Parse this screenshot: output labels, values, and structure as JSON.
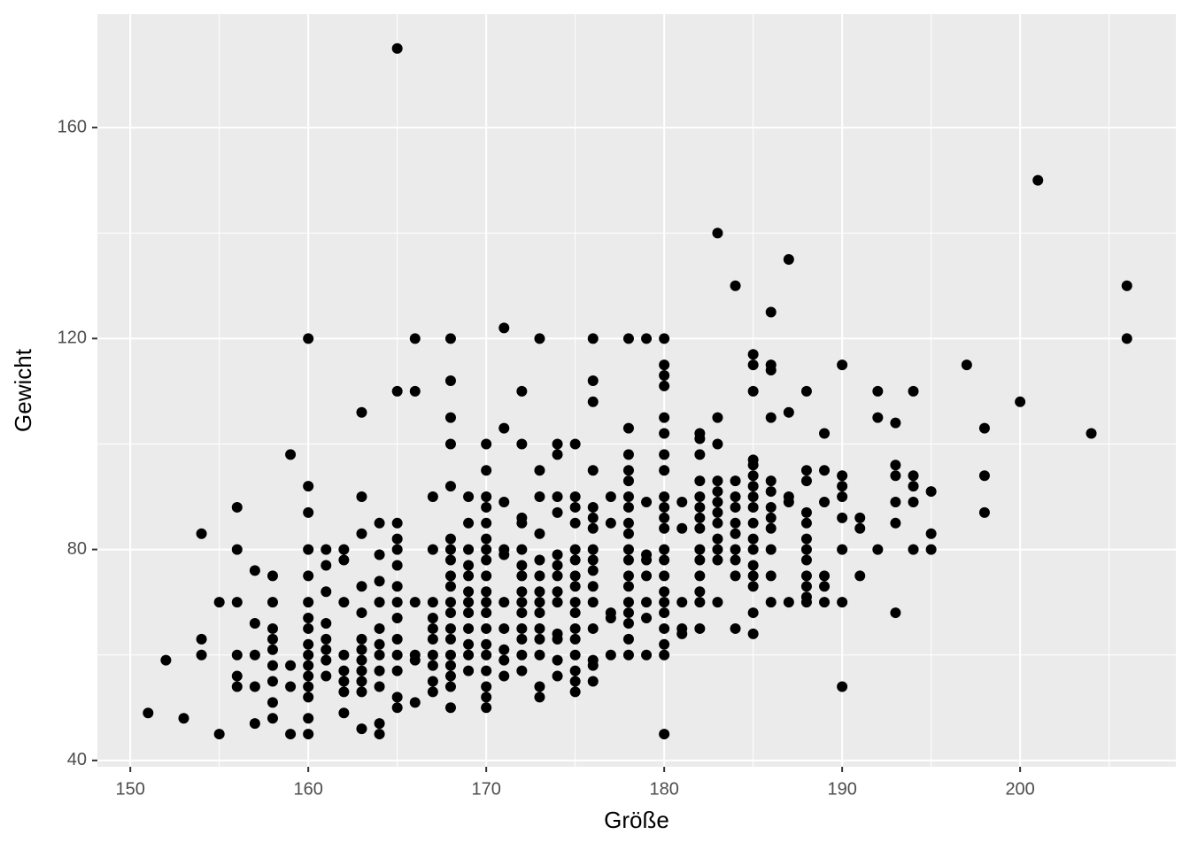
{
  "chart_data": {
    "type": "scatter",
    "x_label": "Größe",
    "y_label": "Gewicht",
    "xlim": [
      148.15,
      208.75
    ],
    "ylim": [
      38.8,
      181.5
    ],
    "xticks": [
      150,
      160,
      170,
      180,
      190,
      200
    ],
    "yticks": [
      40,
      80,
      120,
      160
    ],
    "x_minor_grid": [
      155,
      165,
      175,
      185,
      195,
      205
    ],
    "y_minor_grid": [
      60,
      100,
      140
    ],
    "grid": true,
    "color": "#000000",
    "panel_color": "#ebebeb",
    "x": [
      151,
      152,
      153,
      154,
      154,
      154,
      155,
      155,
      156,
      156,
      156,
      156,
      156,
      156,
      157,
      157,
      157,
      157,
      157,
      158,
      158,
      158,
      158,
      158,
      158,
      158,
      158,
      158,
      159,
      159,
      159,
      159,
      160,
      160,
      160,
      160,
      160,
      160,
      160,
      160,
      160,
      160,
      160,
      160,
      160,
      160,
      160,
      160,
      161,
      161,
      161,
      161,
      161,
      161,
      161,
      161,
      162,
      162,
      162,
      162,
      162,
      162,
      162,
      162,
      163,
      163,
      163,
      163,
      163,
      163,
      163,
      163,
      163,
      163,
      163,
      163,
      164,
      164,
      164,
      164,
      164,
      164,
      164,
      164,
      164,
      164,
      164,
      165,
      165,
      165,
      165,
      165,
      165,
      165,
      165,
      165,
      165,
      165,
      165,
      165,
      165,
      166,
      166,
      166,
      166,
      166,
      166,
      167,
      167,
      167,
      167,
      167,
      167,
      167,
      167,
      167,
      167,
      168,
      168,
      168,
      168,
      168,
      168,
      168,
      168,
      168,
      168,
      168,
      168,
      168,
      168,
      168,
      168,
      168,
      168,
      168,
      169,
      169,
      169,
      169,
      169,
      169,
      169,
      169,
      169,
      169,
      169,
      169,
      170,
      170,
      170,
      170,
      170,
      170,
      170,
      170,
      170,
      170,
      170,
      170,
      170,
      170,
      170,
      170,
      170,
      170,
      170,
      171,
      171,
      171,
      171,
      171,
      171,
      171,
      171,
      171,
      171,
      172,
      172,
      172,
      172,
      172,
      172,
      172,
      172,
      172,
      172,
      172,
      172,
      172,
      172,
      173,
      173,
      173,
      173,
      173,
      173,
      173,
      173,
      173,
      173,
      173,
      173,
      173,
      173,
      174,
      174,
      174,
      174,
      174,
      174,
      174,
      174,
      174,
      174,
      174,
      174,
      174,
      175,
      175,
      175,
      175,
      175,
      175,
      175,
      175,
      175,
      175,
      175,
      175,
      175,
      175,
      175,
      175,
      176,
      176,
      176,
      176,
      176,
      176,
      176,
      176,
      176,
      176,
      176,
      176,
      176,
      176,
      176,
      176,
      177,
      177,
      177,
      177,
      177,
      178,
      178,
      178,
      178,
      178,
      178,
      178,
      178,
      178,
      178,
      178,
      178,
      178,
      178,
      178,
      178,
      178,
      178,
      179,
      179,
      179,
      179,
      179,
      179,
      179,
      179,
      180,
      180,
      180,
      180,
      180,
      180,
      180,
      180,
      180,
      180,
      180,
      180,
      180,
      180,
      180,
      180,
      180,
      180,
      180,
      180,
      180,
      180,
      181,
      181,
      181,
      181,
      181,
      182,
      182,
      182,
      182,
      182,
      182,
      182,
      182,
      182,
      182,
      182,
      182,
      182,
      182,
      183,
      183,
      183,
      183,
      183,
      183,
      183,
      183,
      183,
      183,
      183,
      183,
      184,
      184,
      184,
      184,
      184,
      184,
      184,
      184,
      184,
      184,
      185,
      185,
      185,
      185,
      185,
      185,
      185,
      185,
      185,
      185,
      185,
      185,
      185,
      185,
      185,
      185,
      185,
      186,
      186,
      186,
      186,
      186,
      186,
      186,
      186,
      186,
      186,
      186,
      186,
      187,
      187,
      187,
      187,
      187,
      188,
      188,
      188,
      188,
      188,
      188,
      188,
      188,
      188,
      188,
      188,
      188,
      189,
      189,
      189,
      189,
      189,
      189,
      190,
      190,
      190,
      190,
      190,
      190,
      190,
      190,
      191,
      191,
      191,
      192,
      192,
      192,
      193,
      193,
      193,
      193,
      193,
      193,
      194,
      194,
      194,
      194,
      194,
      195,
      195,
      195,
      197,
      198,
      198,
      198,
      200,
      201,
      204,
      206,
      206
    ],
    "values": [
      49,
      59,
      48,
      83,
      63,
      60,
      70,
      45,
      88,
      80,
      70,
      60,
      56,
      54,
      76,
      66,
      60,
      54,
      47,
      75,
      70,
      65,
      63,
      61,
      58,
      55,
      51,
      48,
      98,
      58,
      54,
      45,
      120,
      92,
      87,
      80,
      75,
      70,
      67,
      65,
      62,
      60,
      58,
      56,
      54,
      52,
      48,
      45,
      80,
      77,
      72,
      66,
      63,
      61,
      59,
      56,
      80,
      78,
      70,
      60,
      57,
      55,
      53,
      49,
      106,
      90,
      83,
      73,
      68,
      63,
      61,
      59,
      57,
      55,
      53,
      46,
      85,
      79,
      74,
      70,
      65,
      62,
      60,
      57,
      54,
      47,
      45,
      175,
      110,
      85,
      82,
      80,
      77,
      73,
      70,
      67,
      63,
      60,
      57,
      52,
      50,
      120,
      110,
      70,
      60,
      59,
      51,
      90,
      80,
      70,
      67,
      65,
      63,
      60,
      58,
      55,
      53,
      120,
      112,
      105,
      100,
      92,
      82,
      80,
      78,
      75,
      73,
      70,
      68,
      65,
      63,
      60,
      58,
      56,
      54,
      50,
      90,
      85,
      80,
      77,
      75,
      72,
      70,
      68,
      65,
      62,
      60,
      57,
      100,
      95,
      90,
      88,
      85,
      82,
      80,
      78,
      75,
      72,
      70,
      68,
      65,
      62,
      60,
      57,
      54,
      52,
      50,
      122,
      103,
      89,
      80,
      79,
      70,
      65,
      61,
      59,
      56,
      110,
      100,
      86,
      85,
      80,
      77,
      75,
      72,
      70,
      68,
      65,
      63,
      60,
      57,
      120,
      95,
      90,
      83,
      78,
      75,
      72,
      70,
      68,
      65,
      63,
      60,
      54,
      52,
      100,
      98,
      90,
      87,
      79,
      77,
      75,
      72,
      70,
      64,
      63,
      59,
      56,
      100,
      90,
      88,
      85,
      80,
      78,
      75,
      73,
      70,
      68,
      65,
      63,
      60,
      57,
      55,
      53,
      120,
      112,
      108,
      95,
      88,
      86,
      84,
      80,
      78,
      76,
      73,
      70,
      65,
      59,
      58,
      55,
      90,
      85,
      68,
      67,
      60,
      120,
      103,
      98,
      95,
      93,
      90,
      88,
      85,
      83,
      80,
      78,
      75,
      73,
      70,
      68,
      66,
      63,
      60,
      120,
      89,
      79,
      78,
      75,
      70,
      67,
      60,
      120,
      115,
      113,
      111,
      105,
      102,
      98,
      95,
      90,
      88,
      86,
      84,
      80,
      78,
      75,
      72,
      70,
      68,
      65,
      62,
      60,
      45,
      89,
      84,
      70,
      65,
      64,
      102,
      101,
      98,
      93,
      90,
      88,
      86,
      84,
      80,
      78,
      75,
      72,
      70,
      65,
      140,
      105,
      100,
      93,
      91,
      89,
      87,
      85,
      82,
      80,
      78,
      70,
      130,
      93,
      90,
      88,
      85,
      83,
      80,
      78,
      75,
      65,
      117,
      115,
      110,
      97,
      96,
      94,
      92,
      90,
      88,
      85,
      82,
      80,
      77,
      75,
      73,
      68,
      64,
      125,
      115,
      114,
      105,
      93,
      91,
      88,
      86,
      84,
      80,
      75,
      70,
      135,
      106,
      90,
      89,
      70,
      110,
      95,
      93,
      87,
      85,
      82,
      80,
      78,
      75,
      73,
      71,
      70,
      102,
      95,
      89,
      75,
      73,
      70,
      115,
      94,
      92,
      90,
      86,
      80,
      70,
      54,
      86,
      84,
      75,
      110,
      105,
      80,
      104,
      96,
      94,
      89,
      85,
      68,
      110,
      94,
      92,
      89,
      80,
      91,
      83,
      80,
      115,
      103,
      94,
      87,
      108,
      150,
      102,
      130,
      120
    ]
  }
}
